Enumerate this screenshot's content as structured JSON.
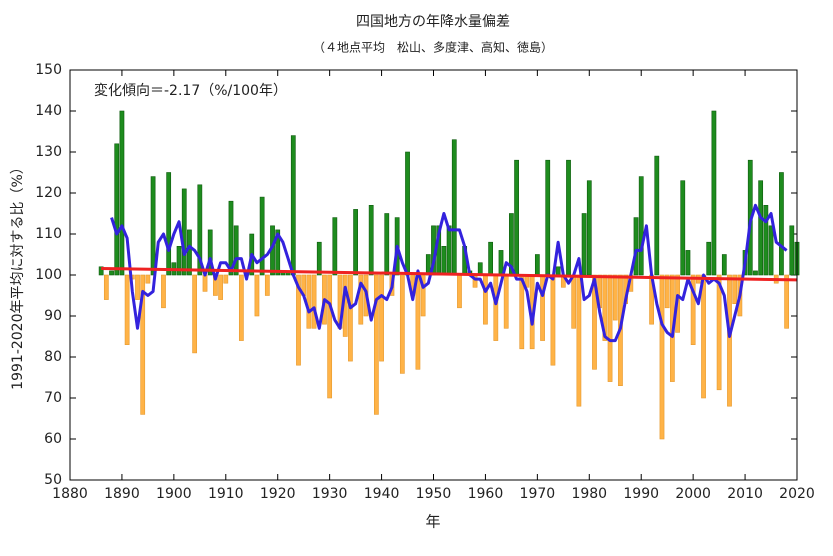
{
  "chart_data": {
    "type": "bar",
    "title": "四国地方の年降水量偏差",
    "subtitle": "（４地点平均　松山、多度津、高知、徳島）",
    "annotation": "変化傾向＝-2.17（%/100年）",
    "xlabel": "年",
    "ylabel": "1991-2020年平均に対する比（%）",
    "baseline": 100,
    "color_above": "#1e8c1e",
    "color_below": "#ffb347",
    "x": [
      1886,
      1887,
      1888,
      1889,
      1890,
      1891,
      1892,
      1893,
      1894,
      1895,
      1896,
      1897,
      1898,
      1899,
      1900,
      1901,
      1902,
      1903,
      1904,
      1905,
      1906,
      1907,
      1908,
      1909,
      1910,
      1911,
      1912,
      1913,
      1914,
      1915,
      1916,
      1917,
      1918,
      1919,
      1920,
      1921,
      1922,
      1923,
      1924,
      1925,
      1926,
      1927,
      1928,
      1929,
      1930,
      1931,
      1932,
      1933,
      1934,
      1935,
      1936,
      1937,
      1938,
      1939,
      1940,
      1941,
      1942,
      1943,
      1944,
      1945,
      1946,
      1947,
      1948,
      1949,
      1950,
      1951,
      1952,
      1953,
      1954,
      1955,
      1956,
      1957,
      1958,
      1959,
      1960,
      1961,
      1962,
      1963,
      1964,
      1965,
      1966,
      1967,
      1968,
      1969,
      1970,
      1971,
      1972,
      1973,
      1974,
      1975,
      1976,
      1977,
      1978,
      1979,
      1980,
      1981,
      1982,
      1983,
      1984,
      1985,
      1986,
      1987,
      1988,
      1989,
      1990,
      1991,
      1992,
      1993,
      1994,
      1995,
      1996,
      1997,
      1998,
      1999,
      2000,
      2001,
      2002,
      2003,
      2004,
      2005,
      2006,
      2007,
      2008,
      2009,
      2010,
      2011,
      2012,
      2013,
      2014,
      2015,
      2016,
      2017,
      2018,
      2019,
      2020
    ],
    "values": [
      102,
      94,
      101,
      132,
      140,
      83,
      99,
      94,
      66,
      98,
      124,
      100,
      92,
      125,
      103,
      107,
      121,
      111,
      81,
      122,
      96,
      111,
      95,
      94,
      98,
      118,
      112,
      84,
      101,
      110,
      90,
      119,
      95,
      112,
      111,
      101,
      101,
      134,
      78,
      95,
      87,
      87,
      108,
      88,
      70,
      114,
      87,
      85,
      79,
      116,
      88,
      90,
      117,
      66,
      79,
      115,
      95,
      114,
      76,
      130,
      95,
      77,
      90,
      105,
      112,
      112,
      107,
      112,
      133,
      92,
      107,
      101,
      97,
      103,
      88,
      108,
      84,
      106,
      87,
      115,
      128,
      82,
      97,
      82,
      105,
      84,
      128,
      78,
      102,
      97,
      128,
      87,
      68,
      115,
      123,
      77,
      92,
      84,
      74,
      89,
      73,
      93,
      96,
      114,
      124,
      100,
      88,
      129,
      60,
      92,
      74,
      86,
      123,
      106,
      83,
      98,
      70,
      108,
      140,
      72,
      105,
      68,
      93,
      90,
      106,
      128,
      101,
      123,
      117,
      112,
      98,
      125,
      87,
      112,
      108
    ],
    "running_mean": {
      "color": "#3322dd",
      "x": [
        1888,
        1889,
        1890,
        1891,
        1892,
        1893,
        1894,
        1895,
        1896,
        1897,
        1898,
        1899,
        1900,
        1901,
        1902,
        1903,
        1904,
        1905,
        1906,
        1907,
        1908,
        1909,
        1910,
        1911,
        1912,
        1913,
        1914,
        1915,
        1916,
        1917,
        1918,
        1919,
        1920,
        1921,
        1922,
        1923,
        1924,
        1925,
        1926,
        1927,
        1928,
        1929,
        1930,
        1931,
        1932,
        1933,
        1934,
        1935,
        1936,
        1937,
        1938,
        1939,
        1940,
        1941,
        1942,
        1943,
        1944,
        1945,
        1946,
        1947,
        1948,
        1949,
        1950,
        1951,
        1952,
        1953,
        1954,
        1955,
        1956,
        1957,
        1958,
        1959,
        1960,
        1961,
        1962,
        1963,
        1964,
        1965,
        1966,
        1967,
        1968,
        1969,
        1970,
        1971,
        1972,
        1973,
        1974,
        1975,
        1976,
        1977,
        1978,
        1979,
        1980,
        1981,
        1982,
        1983,
        1984,
        1985,
        1986,
        1987,
        1988,
        1989,
        1990,
        1991,
        1992,
        1993,
        1994,
        1995,
        1996,
        1997,
        1998,
        1999,
        2000,
        2001,
        2002,
        2003,
        2004,
        2005,
        2006,
        2007,
        2008,
        2009,
        2010,
        2011,
        2012,
        2013,
        2014,
        2015,
        2016,
        2017,
        2018
      ],
      "values": [
        114,
        110,
        112,
        109,
        96,
        87,
        96,
        95,
        96,
        108,
        110,
        106,
        110,
        113,
        105,
        107,
        106,
        104,
        100,
        104,
        99,
        103,
        103,
        101,
        104,
        104,
        99,
        105,
        103,
        104,
        105,
        107,
        110,
        108,
        104,
        100,
        97,
        95,
        91,
        92,
        87,
        94,
        93,
        89,
        87,
        97,
        92,
        93,
        98,
        96,
        89,
        94,
        95,
        94,
        97,
        107,
        103,
        100,
        94,
        101,
        97,
        98,
        103,
        110,
        115,
        111,
        111,
        111,
        107,
        100,
        99,
        99,
        96,
        98,
        93,
        98,
        103,
        102,
        99,
        99,
        96,
        88,
        98,
        95,
        100,
        99,
        108,
        100,
        98,
        100,
        104,
        94,
        95,
        99,
        91,
        85,
        84,
        84,
        87,
        94,
        100,
        106,
        106,
        112,
        100,
        93,
        88,
        86,
        85,
        95,
        94,
        99,
        96,
        93,
        100,
        98,
        99,
        98,
        95,
        85,
        90,
        95,
        103,
        113,
        117,
        114,
        113,
        115,
        108,
        107,
        106
      ]
    },
    "trend": {
      "color": "#ee2222",
      "x": [
        1886,
        2020
      ],
      "values": [
        101.6,
        98.8
      ]
    },
    "xlim": [
      1880,
      2020
    ],
    "xticks": [
      1880,
      1890,
      1900,
      1910,
      1920,
      1930,
      1940,
      1950,
      1960,
      1970,
      1980,
      1990,
      2000,
      2010,
      2020
    ],
    "ylim": [
      50,
      150
    ],
    "yticks": [
      50,
      60,
      70,
      80,
      90,
      100,
      110,
      120,
      130,
      140,
      150
    ]
  }
}
